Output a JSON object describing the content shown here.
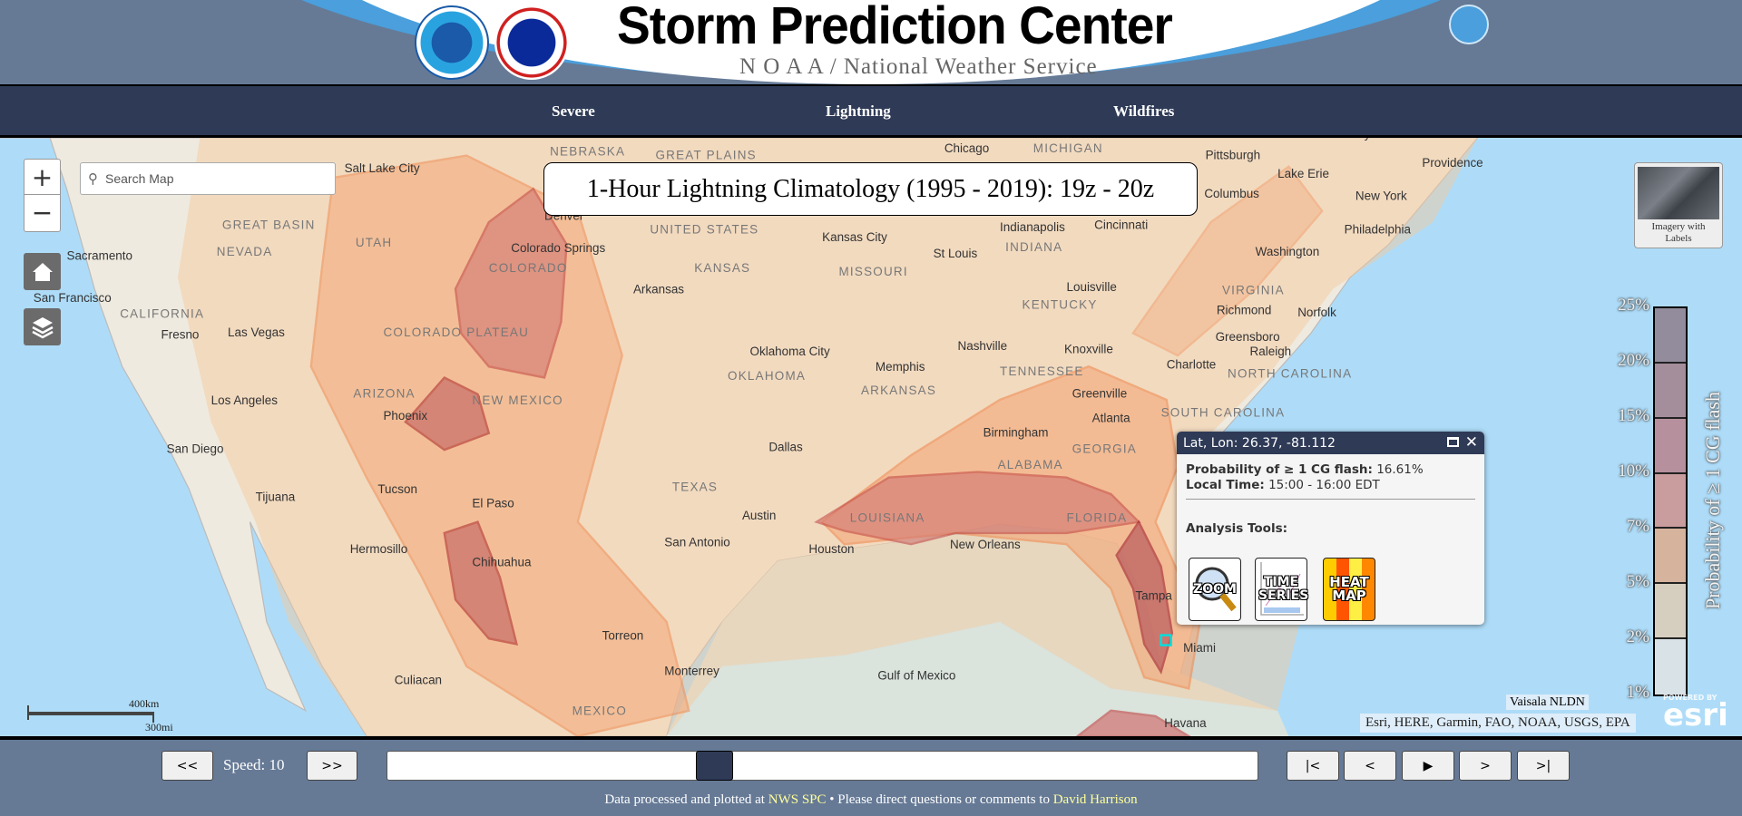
{
  "header": {
    "title": "Storm Prediction Center",
    "subtitle": "N O A A / National Weather Service",
    "logos": [
      "NOAA",
      "National Weather Service",
      "Department of Commerce"
    ]
  },
  "nav": {
    "items": [
      {
        "label": "Severe"
      },
      {
        "label": "Lightning"
      },
      {
        "label": "Wildfires"
      }
    ]
  },
  "map": {
    "title": "1-Hour Lightning Climatology (1995 - 2019): 19z - 20z",
    "search_placeholder": "Search Map",
    "zoom_in": "+",
    "zoom_out": "−",
    "basemap_label": "Imagery with Labels",
    "scale": {
      "km": "400km",
      "mi": "300mi"
    },
    "attribution": "Esri, HERE, Garmin, FAO, NOAA, USGS, EPA",
    "data_source": "Vaisala NLDN",
    "esri": {
      "powered_by": "POWERED BY",
      "logo": "esri"
    },
    "labels": [
      "GREAT PLAINS",
      "Chicago",
      "MICHIGAN",
      "Lake Erie",
      "Albany",
      "Providence",
      "New York",
      "Philadelphia",
      "Salt Lake City",
      "UNITED STATES",
      "NEBRASKA",
      "Kansas City",
      "KANSAS",
      "MISSOURI",
      "St Louis",
      "INDIANA",
      "Indianapolis",
      "Cincinnati",
      "Pittsburgh",
      "Columbus",
      "Washington",
      "Richmond",
      "VIRGINIA",
      "Norfolk",
      "Louisville",
      "KENTUCKY",
      "Nashville",
      "Knoxville",
      "TENNESSEE",
      "Greensboro",
      "Raleigh",
      "Charlotte",
      "NORTH CAROLINA",
      "Memphis",
      "ARKANSAS",
      "Oklahoma City",
      "OKLAHOMA",
      "Arkansas",
      "Greenville",
      "Atlanta",
      "SOUTH CAROLINA",
      "Birmingham",
      "ALABAMA",
      "GEORGIA",
      "Dallas",
      "TEXAS",
      "Austin",
      "San Antonio",
      "Houston",
      "LOUISIANA",
      "New Orleans",
      "FLORIDA",
      "Tampa",
      "Miami",
      "Havana",
      "Gulf of Mexico",
      "Monterrey",
      "Torreon",
      "Chihuahua",
      "Hermosillo",
      "Culiacan",
      "MEXICO",
      "El Paso",
      "Tucson",
      "Phoenix",
      "Tijuana",
      "San Diego",
      "Los Angeles",
      "Las Vegas",
      "Fresno",
      "San Francisco",
      "Sacramento",
      "CALIFORNIA",
      "NEVADA",
      "GREAT BASIN",
      "UTAH",
      "COLORADO",
      "COLORADO PLATEAU",
      "ARIZONA",
      "NEW MEXICO",
      "Denver",
      "Colorado Springs"
    ]
  },
  "legend": {
    "title": "Probability of ≥ 1 CG flash",
    "ticks": [
      "25%",
      "20%",
      "15%",
      "10%",
      "7%",
      "5%",
      "2%",
      "1%"
    ],
    "colors": [
      "#938c9c",
      "#a58e9c",
      "#b6919d",
      "#c99c9e",
      "#d6b39d",
      "#d6cebe",
      "#d9e2e6"
    ]
  },
  "popup": {
    "header": "Lat, Lon: 26.37, -81.112",
    "prob_label": "Probability of ≥ 1 CG flash:",
    "prob_value": "16.61%",
    "time_label": "Local Time:",
    "time_value": "15:00 - 16:00 EDT",
    "tools_label": "Analysis Tools:",
    "tools": [
      {
        "label": "ZOOM"
      },
      {
        "label": "TIME SERIES"
      },
      {
        "label": "HEAT MAP"
      }
    ]
  },
  "controls": {
    "slower": "<<",
    "speed_label": "Speed: 10",
    "faster": ">>",
    "slider_position": 0.37,
    "first": "|<",
    "prev": "<",
    "play": "▶",
    "next": ">",
    "last": ">|"
  },
  "footer": {
    "text1": "Data processed and plotted at ",
    "link1": "NWS SPC",
    "text2": " • Please direct questions or comments to ",
    "link2": "David Harrison"
  }
}
